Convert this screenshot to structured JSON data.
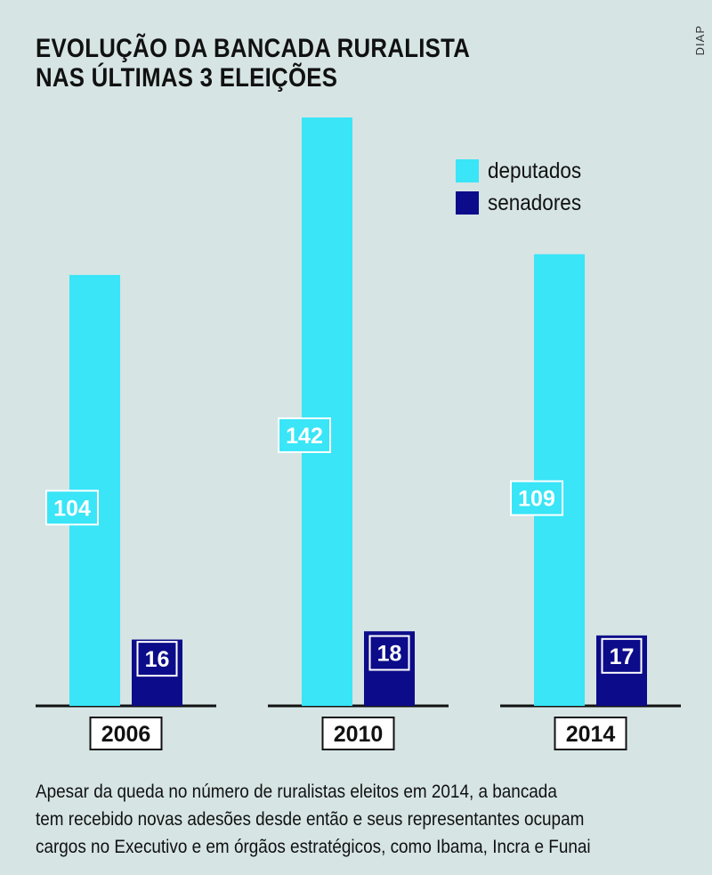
{
  "title_lines": [
    "EVOLUÇÃO DA BANCADA RURALISTA",
    "NAS ÚLTIMAS 3 ELEIÇÕES"
  ],
  "source": "DIAP",
  "caption_lines": [
    "Apesar da queda no número de ruralistas eleitos em 2014, a bancada",
    "tem recebido novas adesões desde então e seus representantes ocupam",
    "cargos no Executivo e em órgãos estratégicos, como Ibama, Incra e Funai"
  ],
  "colors": {
    "deputados": "#39e5f7",
    "senadores": "#0c0c8a",
    "text": "#111111"
  },
  "chart_data": {
    "type": "bar",
    "title": "EVOLUÇÃO DA BANCADA RURALISTA NAS ÚLTIMAS 3 ELEIÇÕES",
    "categories": [
      "2006",
      "2010",
      "2014"
    ],
    "series": [
      {
        "name": "deputados",
        "values": [
          104,
          142,
          109
        ]
      },
      {
        "name": "senadores",
        "values": [
          16,
          18,
          17
        ]
      }
    ],
    "legend_position": "top-right",
    "grid": false
  }
}
